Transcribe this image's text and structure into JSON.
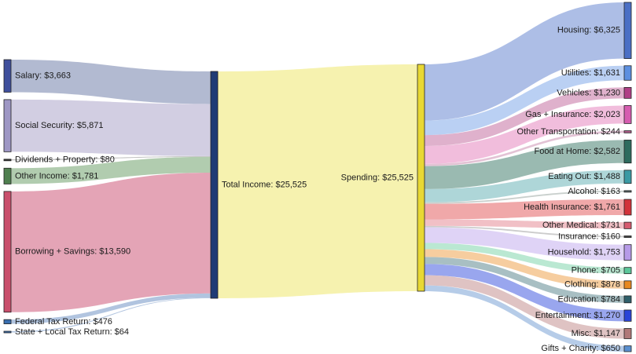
{
  "diagram": {
    "type": "sankey",
    "sources": [
      {
        "name": "Salary",
        "value": 3663,
        "label": "Salary: $3,663",
        "color": "#3f4f9c",
        "flow_color": "#aab2cc"
      },
      {
        "name": "Social Security",
        "value": 5871,
        "label": "Social Security: $5,871",
        "color": "#9e97c4",
        "flow_color": "#cdc9df"
      },
      {
        "name": "Dividends + Property",
        "value": 80,
        "label": "Dividends + Property: $80",
        "color": "#3b3b3b",
        "flow_color": "#bdbdbd"
      },
      {
        "name": "Other Income",
        "value": 1781,
        "label": "Other Income: $1,781",
        "color": "#4f7f4f",
        "flow_color": "#a9c6a6"
      },
      {
        "name": "Borrowing + Savings",
        "value": 13590,
        "label": "Borrowing + Savings: $13,590",
        "color": "#c94f6c",
        "flow_color": "#e19aae"
      },
      {
        "name": "Federal Tax Return",
        "value": 476,
        "label": "Federal Tax Return: $476",
        "color": "#3a6fb0",
        "flow_color": "#a9bedc"
      },
      {
        "name": "State + Local Tax Return",
        "value": 64,
        "label": "State + Local Tax Return: $64",
        "color": "#3a6fb0",
        "flow_color": "#a9bedc"
      }
    ],
    "total_income": {
      "name": "Total Income",
      "value": 25525,
      "label": "Total Income: $25,525",
      "color": "#1f3b75",
      "flow_color": "#f5f1a6"
    },
    "spending": {
      "name": "Spending",
      "value": 25525,
      "label": "Spending: $25,525",
      "color": "#e8d834"
    },
    "categories": [
      {
        "name": "Housing",
        "value": 6325,
        "label": "Housing: $6,325",
        "color": "#4a6fc5",
        "flow_color": "#a4b7e3"
      },
      {
        "name": "Utilities",
        "value": 1631,
        "label": "Utilities: $1,631",
        "color": "#5c8fe0",
        "flow_color": "#b3cbf2"
      },
      {
        "name": "Vehicles",
        "value": 1230,
        "label": "Vehicles: $1,230",
        "color": "#b03f86",
        "flow_color": "#dba8c6"
      },
      {
        "name": "Gas + Insurance",
        "value": 2023,
        "label": "Gas + Insurance: $2,023",
        "color": "#d65cb0",
        "flow_color": "#efb6d8"
      },
      {
        "name": "Other Transportation",
        "value": 244,
        "label": "Other Transportation: $244",
        "color": "#b05c8a",
        "flow_color": "#e0bcd0"
      },
      {
        "name": "Food at Home",
        "value": 2582,
        "label": "Food at Home: $2,582",
        "color": "#2e6b5e",
        "flow_color": "#8fb3a8"
      },
      {
        "name": "Eating Out",
        "value": 1488,
        "label": "Eating Out: $1,488",
        "color": "#3a9aa4",
        "flow_color": "#a5d2d4"
      },
      {
        "name": "Alcohol",
        "value": 163,
        "label": "Alcohol: $163",
        "color": "#5d6b6b",
        "flow_color": "#c3cbc8"
      },
      {
        "name": "Health Insurance",
        "value": 1761,
        "label": "Health Insurance: $1,761",
        "color": "#d2333a",
        "flow_color": "#ee9ea0"
      },
      {
        "name": "Other Medical",
        "value": 731,
        "label": "Other Medical: $731",
        "color": "#d65a6e",
        "flow_color": "#f0b9c0"
      },
      {
        "name": "Insurance",
        "value": 160,
        "label": "Insurance: $160",
        "color": "#444444",
        "flow_color": "#c7c7c7"
      },
      {
        "name": "Household",
        "value": 1753,
        "label": "Household: $1,753",
        "color": "#b69ae8",
        "flow_color": "#dccef5"
      },
      {
        "name": "Phone",
        "value": 705,
        "label": "Phone: $705",
        "color": "#5cc79a",
        "flow_color": "#b2e6cd"
      },
      {
        "name": "Clothing",
        "value": 878,
        "label": "Clothing: $878",
        "color": "#e8891f",
        "flow_color": "#f5c895"
      },
      {
        "name": "Education",
        "value": 784,
        "label": "Education: $784",
        "color": "#2f5f6a",
        "flow_color": "#9fb8bd"
      },
      {
        "name": "Entertainment",
        "value": 1270,
        "label": "Entertainment: $1,270",
        "color": "#2a44d8",
        "flow_color": "#8e9cec"
      },
      {
        "name": "Misc",
        "value": 1147,
        "label": "Misc: $1,147",
        "color": "#b07878",
        "flow_color": "#dcbcbc"
      },
      {
        "name": "Gifts + Charity",
        "value": 650,
        "label": "Gifts + Charity: $650",
        "color": "#5a8fd0",
        "flow_color": "#aec7e6"
      }
    ]
  }
}
